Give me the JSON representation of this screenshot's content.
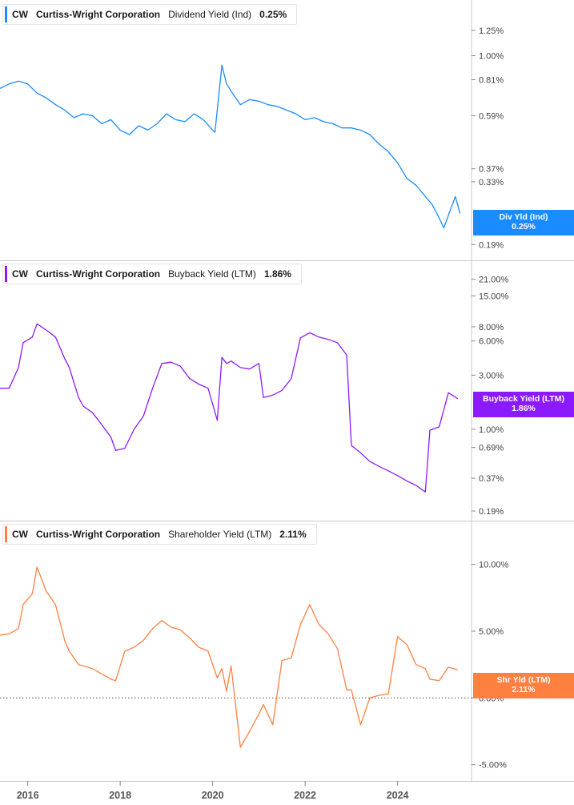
{
  "legends": [
    {
      "ticker": "CW",
      "company": "Curtiss-Wright Corporation",
      "metric": "Dividend Yield (Ind)",
      "value": "0.25%",
      "color": "#1a8cff"
    },
    {
      "ticker": "CW",
      "company": "Curtiss-Wright Corporation",
      "metric": "Buyback Yield (LTM)",
      "value": "1.86%",
      "color": "#8c1aff"
    },
    {
      "ticker": "CW",
      "company": "Curtiss-Wright Corporation",
      "metric": "Shareholder Yield (LTM)",
      "value": "2.11%",
      "color": "#ff8040"
    }
  ],
  "tags": [
    {
      "label": "Div Yld (Ind)",
      "value": "0.25%",
      "color": "#1a8cff"
    },
    {
      "label": "Buyback Yield (LTM)",
      "value": "1.86%",
      "color": "#8c1aff"
    },
    {
      "label": "Shr Yld (LTM)",
      "value": "2.11%",
      "color": "#ff8040"
    }
  ],
  "chart_data": [
    {
      "type": "line",
      "title": "Dividend Yield (Ind)",
      "scale": "log",
      "tick_values": [
        1.25,
        1.0,
        0.81,
        0.59,
        0.37,
        0.33,
        0.19
      ],
      "tick_labels": [
        "1.25%",
        "1.00%",
        "0.81%",
        "0.59%",
        "0.37%",
        "0.33%",
        "0.19%"
      ],
      "ylim": [
        0.18,
        1.5
      ],
      "series": [
        {
          "name": "Div Yld (Ind)",
          "color": "#1a8cff",
          "x": [
            2015.4,
            2015.6,
            2015.8,
            2016.0,
            2016.2,
            2016.4,
            2016.6,
            2016.8,
            2017.0,
            2017.2,
            2017.4,
            2017.6,
            2017.8,
            2018.0,
            2018.2,
            2018.4,
            2018.6,
            2018.8,
            2019.0,
            2019.2,
            2019.4,
            2019.6,
            2019.8,
            2020.0,
            2020.05,
            2020.2,
            2020.3,
            2020.45,
            2020.6,
            2020.8,
            2021.0,
            2021.2,
            2021.4,
            2021.6,
            2021.8,
            2022.0,
            2022.2,
            2022.4,
            2022.6,
            2022.8,
            2023.0,
            2023.2,
            2023.4,
            2023.6,
            2023.8,
            2024.0,
            2024.2,
            2024.4,
            2024.6,
            2024.75,
            2024.9,
            2025.0,
            2025.15,
            2025.25,
            2025.35
          ],
          "y": [
            0.75,
            0.78,
            0.8,
            0.78,
            0.72,
            0.69,
            0.65,
            0.62,
            0.58,
            0.6,
            0.59,
            0.55,
            0.57,
            0.52,
            0.5,
            0.54,
            0.52,
            0.55,
            0.6,
            0.57,
            0.56,
            0.6,
            0.57,
            0.52,
            0.51,
            0.92,
            0.78,
            0.71,
            0.65,
            0.68,
            0.67,
            0.65,
            0.64,
            0.62,
            0.6,
            0.57,
            0.58,
            0.56,
            0.55,
            0.53,
            0.53,
            0.52,
            0.5,
            0.46,
            0.43,
            0.39,
            0.34,
            0.32,
            0.29,
            0.27,
            0.24,
            0.22,
            0.26,
            0.29,
            0.25
          ]
        }
      ]
    },
    {
      "type": "line",
      "title": "Buyback Yield (LTM)",
      "scale": "log",
      "tick_values": [
        21,
        15,
        8,
        6,
        3,
        1,
        0.69,
        0.37,
        0.19
      ],
      "tick_labels": [
        "21.00%",
        "15.00%",
        "8.00%",
        "6.00%",
        "3.00%",
        "1.00%",
        "0.69%",
        "0.37%",
        "0.19%"
      ],
      "ylim": [
        0.19,
        25
      ],
      "series": [
        {
          "name": "Buyback Yield (LTM)",
          "color": "#8c1aff",
          "x": [
            2015.4,
            2015.6,
            2015.8,
            2015.9,
            2016.1,
            2016.2,
            2016.4,
            2016.6,
            2016.8,
            2016.9,
            2017.1,
            2017.2,
            2017.4,
            2017.6,
            2017.8,
            2017.9,
            2018.1,
            2018.3,
            2018.5,
            2018.7,
            2018.9,
            2019.1,
            2019.3,
            2019.5,
            2019.7,
            2019.9,
            2020.1,
            2020.2,
            2020.3,
            2020.4,
            2020.6,
            2020.8,
            2021.0,
            2021.1,
            2021.3,
            2021.5,
            2021.7,
            2021.9,
            2022.1,
            2022.3,
            2022.5,
            2022.7,
            2022.9,
            2023.0,
            2023.2,
            2023.4,
            2023.6,
            2023.8,
            2024.0,
            2024.2,
            2024.4,
            2024.6,
            2024.7,
            2024.9,
            2025.1,
            2025.3
          ],
          "y": [
            2.3,
            2.3,
            3.5,
            5.8,
            6.5,
            8.5,
            7.5,
            6.5,
            4.2,
            3.5,
            1.9,
            1.6,
            1.4,
            1.1,
            0.85,
            0.65,
            0.68,
            1.0,
            1.3,
            2.3,
            3.8,
            3.9,
            3.6,
            2.8,
            2.5,
            2.3,
            1.2,
            4.3,
            3.8,
            4.0,
            3.5,
            3.4,
            3.8,
            1.9,
            2.0,
            2.2,
            2.8,
            6.4,
            7.1,
            6.5,
            6.2,
            5.8,
            4.5,
            0.72,
            0.62,
            0.52,
            0.47,
            0.43,
            0.39,
            0.35,
            0.32,
            0.28,
            0.98,
            1.05,
            2.1,
            1.86
          ]
        }
      ]
    },
    {
      "type": "line",
      "title": "Shareholder Yield (LTM)",
      "scale": "linear",
      "tick_values": [
        10,
        5,
        0,
        -5
      ],
      "tick_labels": [
        "10.00%",
        "5.00%",
        "0.00%",
        "-5.00%"
      ],
      "ylim": [
        -5.5,
        12.5
      ],
      "series": [
        {
          "name": "Shr Yld (LTM)",
          "color": "#ff8040",
          "x": [
            2015.4,
            2015.6,
            2015.8,
            2015.9,
            2016.1,
            2016.2,
            2016.4,
            2016.6,
            2016.8,
            2016.9,
            2017.1,
            2017.2,
            2017.4,
            2017.6,
            2017.8,
            2017.9,
            2018.1,
            2018.3,
            2018.5,
            2018.7,
            2018.9,
            2019.1,
            2019.3,
            2019.5,
            2019.7,
            2019.9,
            2020.1,
            2020.2,
            2020.3,
            2020.4,
            2020.6,
            2020.8,
            2021.0,
            2021.1,
            2021.3,
            2021.5,
            2021.7,
            2021.9,
            2022.1,
            2022.3,
            2022.5,
            2022.7,
            2022.9,
            2023.0,
            2023.2,
            2023.4,
            2023.6,
            2023.8,
            2024.0,
            2024.2,
            2024.4,
            2024.6,
            2024.7,
            2024.9,
            2025.1,
            2025.3
          ],
          "y": [
            4.7,
            4.8,
            5.2,
            7.0,
            7.8,
            9.8,
            8.0,
            7.0,
            4.3,
            3.5,
            2.5,
            2.4,
            2.2,
            1.8,
            1.4,
            1.3,
            3.5,
            3.8,
            4.3,
            5.2,
            5.8,
            5.3,
            5.1,
            4.5,
            3.8,
            3.5,
            1.5,
            2.2,
            0.5,
            2.4,
            -3.7,
            -2.5,
            -1.2,
            -0.5,
            -2.0,
            2.8,
            3.0,
            5.5,
            7.0,
            5.5,
            4.8,
            3.7,
            0.6,
            0.6,
            -2.0,
            0.0,
            0.2,
            0.3,
            4.6,
            4.0,
            2.5,
            2.2,
            1.4,
            1.3,
            2.3,
            2.11
          ]
        }
      ]
    }
  ],
  "x_axis": {
    "ticks": [
      2016,
      2018,
      2020,
      2022,
      2024
    ],
    "labels": [
      "2016",
      "2018",
      "2020",
      "2022",
      "2024"
    ]
  }
}
